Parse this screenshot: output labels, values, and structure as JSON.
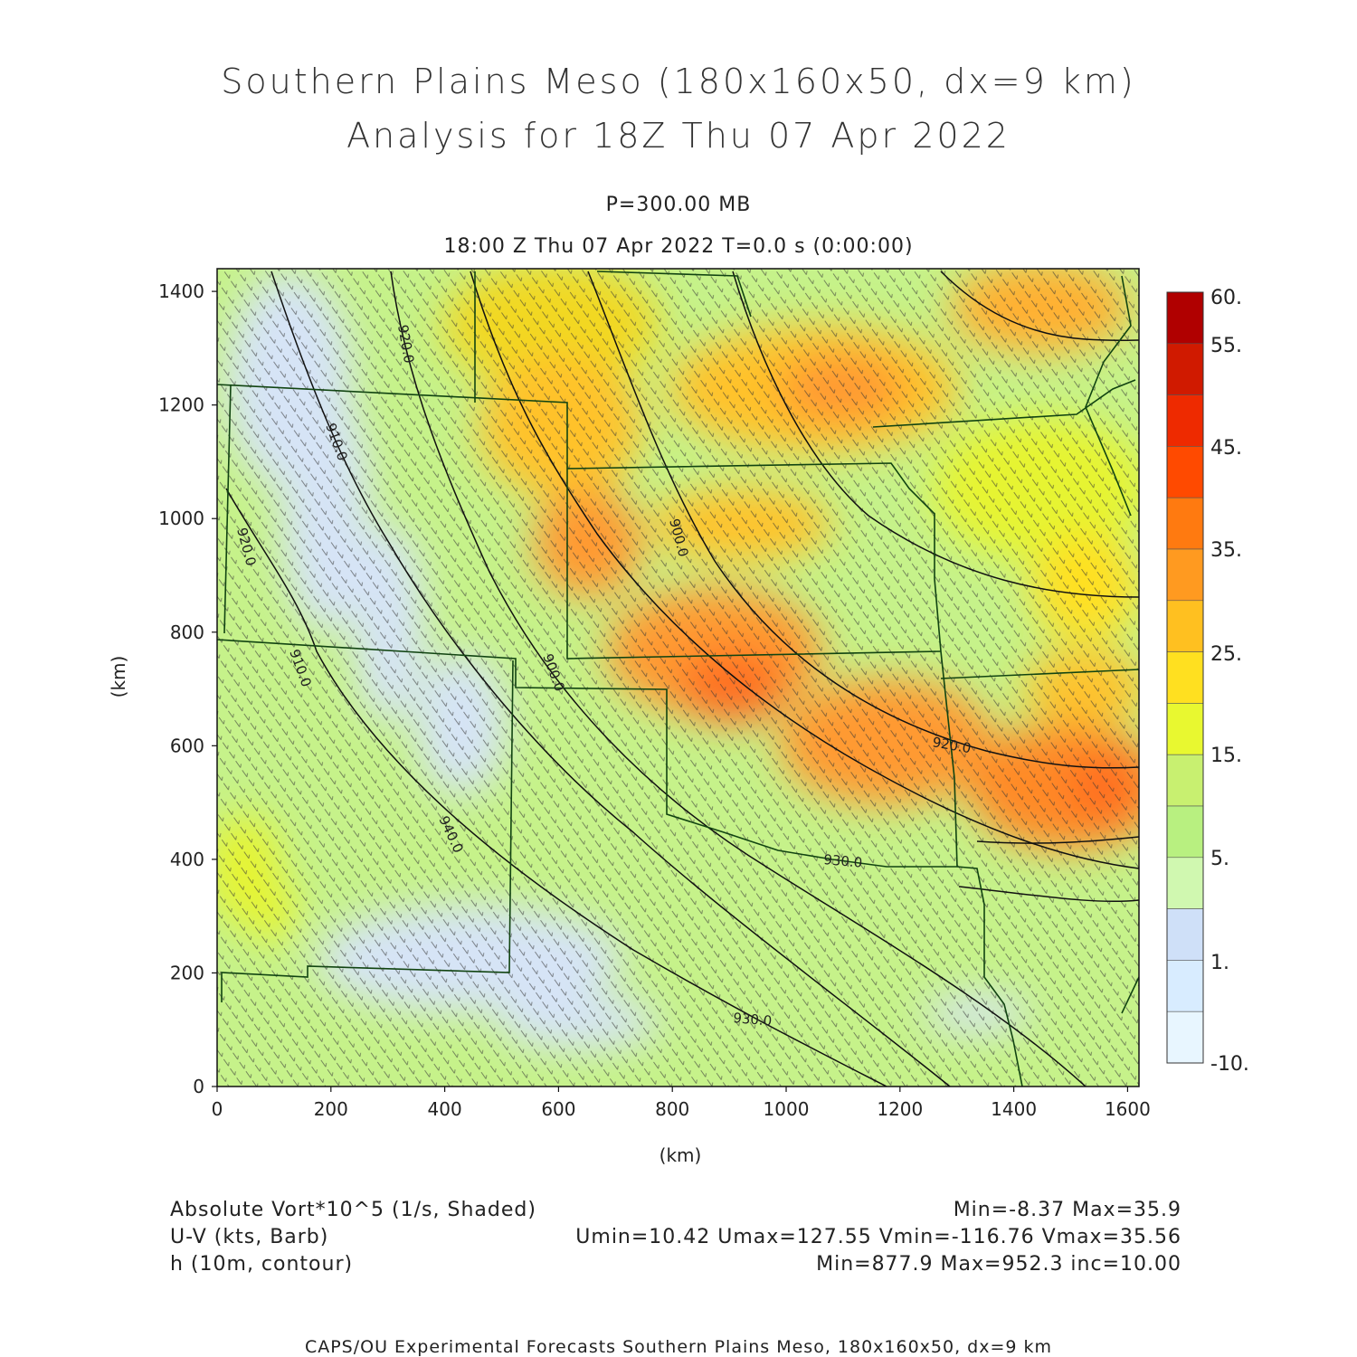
{
  "header": {
    "title_line1": "Southern Plains Meso (180x160x50, dx=9 km)",
    "title_line2": "Analysis for 18Z Thu 07 Apr 2022",
    "level": "P=300.00 MB",
    "valid_time": "18:00 Z Thu 07 Apr 2022    T=0.0 s (0:00:00)"
  },
  "axes": {
    "x_label": "(km)",
    "y_label": "(km)",
    "x_ticks": [
      "0",
      "200",
      "400",
      "600",
      "800",
      "1000",
      "1200",
      "1400",
      "1600"
    ],
    "y_ticks": [
      "0",
      "200",
      "400",
      "600",
      "800",
      "1000",
      "1200",
      "1400"
    ],
    "x_range": [
      0,
      1620
    ],
    "y_range": [
      0,
      1440
    ]
  },
  "colorbar": {
    "labels": [
      "60.",
      "55.",
      "45.",
      "35.",
      "25.",
      "15.",
      "5.",
      "1.",
      "-10."
    ],
    "colors": [
      "#b00000",
      "#d01a00",
      "#ee2a00",
      "#ff4a00",
      "#ff7a10",
      "#ff9a20",
      "#ffc020",
      "#ffe020",
      "#e8f830",
      "#c8f070",
      "#b8f080",
      "#d0f8b0",
      "#cfe0f8",
      "#d8ecff",
      "#e8f6ff"
    ]
  },
  "contours": {
    "labels": [
      "920.0",
      "910.0",
      "920.0",
      "910.0",
      "900.0",
      "900.0",
      "940.0",
      "920.0",
      "930.0",
      "930.0"
    ]
  },
  "footer": {
    "field1_name": "Absolute Vort*10^5 (1/s, Shaded)",
    "field1_stats": "Min=-8.37 Max=35.9",
    "field2_name": "U-V (kts, Barb)",
    "field2_stats": "Umin=10.42 Umax=127.55 Vmin=-116.76 Vmax=35.56",
    "field3_name": "h (10m, contour)",
    "field3_stats": "Min=877.9 Max=952.3 inc=10.00",
    "credit": "CAPS/OU Experimental Forecasts  Southern Plains Meso, 180x160x50, dx=9 km"
  }
}
